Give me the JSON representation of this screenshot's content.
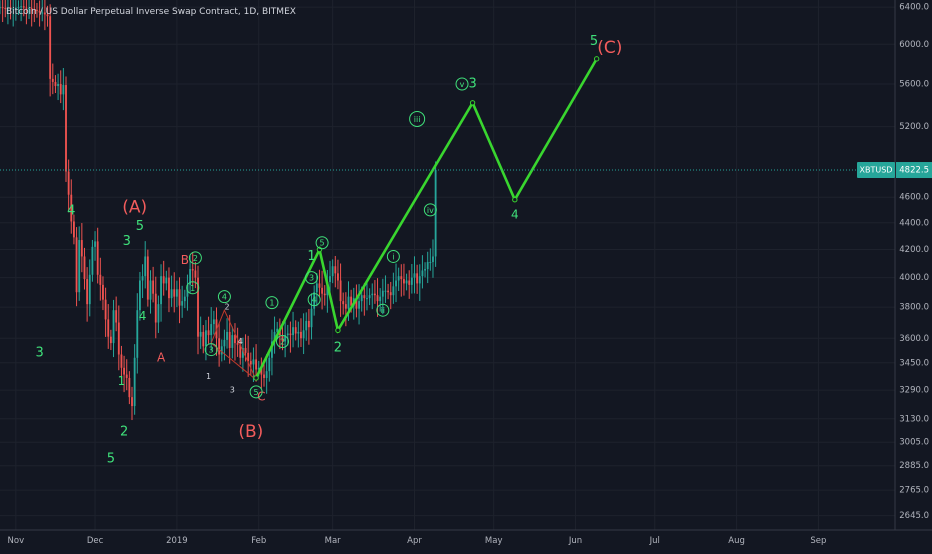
{
  "chart_data": {
    "type": "candlestick",
    "title": "Bitcoin / US Dollar Perpetual Inverse Swap Contract, 1D, BITMEX",
    "symbol_badge": "XBTUSD",
    "price_badge": "4822.5",
    "last_price": 4822.5,
    "y_scale": "log",
    "ylim": [
      2580,
      6480
    ],
    "y_ticks": [
      6400,
      6000,
      5600,
      5200,
      4822.5,
      4600,
      4400,
      4200,
      4000,
      3800,
      3600,
      3450,
      3290,
      3130,
      3005,
      2885,
      2765,
      2645
    ],
    "y_tick_labels": [
      "6400.0",
      "6000.0",
      "5600.0",
      "5200.0",
      "4822.5",
      "4600.0",
      "4400.0",
      "4200.0",
      "4000.0",
      "3800.0",
      "3600.0",
      "3450.0",
      "3290.0",
      "3130.0",
      "3005.0",
      "2885.0",
      "2765.0",
      "2645.0"
    ],
    "xlim": [
      "2018-10-26",
      "2019-09-30"
    ],
    "x_ticks": [
      {
        "date": "2018-11-01",
        "label": "Nov"
      },
      {
        "date": "2018-12-01",
        "label": "Dec"
      },
      {
        "date": "2019-01-01",
        "label": "2019"
      },
      {
        "date": "2019-02-01",
        "label": "Feb"
      },
      {
        "date": "2019-03-01",
        "label": "Mar"
      },
      {
        "date": "2019-04-01",
        "label": "Apr"
      },
      {
        "date": "2019-05-01",
        "label": "May"
      },
      {
        "date": "2019-06-01",
        "label": "Jun"
      },
      {
        "date": "2019-07-01",
        "label": "Jul"
      },
      {
        "date": "2019-08-01",
        "label": "Aug"
      },
      {
        "date": "2019-09-01",
        "label": "Sep"
      }
    ],
    "candles_start": "2018-10-26",
    "candles_close": [
      6400,
      6390,
      6385,
      6395,
      6380,
      6385,
      6390,
      6400,
      6410,
      6395,
      6385,
      6390,
      6380,
      6370,
      6360,
      6340,
      6340,
      6320,
      6300,
      5650,
      5620,
      5580,
      5600,
      5500,
      5590,
      4810,
      4620,
      4410,
      4290,
      3900,
      4270,
      4150,
      3990,
      3820,
      4020,
      4220,
      4260,
      4020,
      3950,
      3850,
      3720,
      3610,
      3570,
      3780,
      3700,
      3500,
      3420,
      3380,
      3360,
      3250,
      3200,
      3480,
      3780,
      3980,
      4010,
      4150,
      3850,
      3980,
      3890,
      3700,
      3820,
      4010,
      3960,
      4000,
      3860,
      3920,
      3870,
      3920,
      3810,
      3840,
      3870,
      3950,
      4060,
      4050,
      4000,
      3610,
      3640,
      3550,
      3650,
      3620,
      3690,
      3720,
      3600,
      3500,
      3550,
      3590,
      3640,
      3540,
      3620,
      3570,
      3560,
      3480,
      3540,
      3510,
      3460,
      3440,
      3470,
      3410,
      3420,
      3380,
      3360,
      3400,
      3480,
      3580,
      3640,
      3660,
      3620,
      3580,
      3620,
      3630,
      3620,
      3670,
      3630,
      3640,
      3600,
      3650,
      3710,
      3670,
      3790,
      3900,
      3960,
      3930,
      3890,
      3880,
      3970,
      4010,
      4080,
      4030,
      3980,
      3840,
      3820,
      3790,
      3870,
      3810,
      3860,
      3790,
      3840,
      3880,
      3860,
      3860,
      3880,
      3890,
      3880,
      3840,
      3870,
      3910,
      3910,
      3900,
      3880,
      3940,
      3980,
      4010,
      3990,
      3960,
      3980,
      3950,
      4000,
      4030,
      3960,
      4010,
      4050,
      4060,
      4110,
      4110,
      4150,
      4822.5
    ],
    "wave_path": [
      {
        "date": "2019-01-31",
        "price": 3360
      },
      {
        "date": "2019-02-24",
        "price": 4200
      },
      {
        "date": "2019-03-03",
        "price": 3650
      },
      {
        "date": "2019-04-23",
        "price": 5420
      },
      {
        "date": "2019-05-09",
        "price": 4580
      },
      {
        "date": "2019-06-09",
        "price": 5850
      }
    ],
    "annotations": [
      {
        "text": "(A)",
        "date": "2018-12-16",
        "price": 4520,
        "color": "#f25c5c",
        "size": 17
      },
      {
        "text": "(B)",
        "date": "2019-01-29",
        "price": 3060,
        "color": "#f25c5c",
        "size": 17
      },
      {
        "text": "(C)",
        "date": "2019-06-14",
        "price": 5960,
        "color": "#f25c5c",
        "size": 17
      },
      {
        "text": "5",
        "date": "2019-06-08",
        "price": 6030,
        "color": "#3fe07a",
        "size": 13
      },
      {
        "text": "3",
        "date": "2019-04-23",
        "price": 5600,
        "color": "#3fe07a",
        "size": 13
      },
      {
        "text": "4",
        "date": "2019-05-09",
        "price": 4460,
        "color": "#3fe07a",
        "size": 12
      },
      {
        "text": "4",
        "date": "2018-11-22",
        "price": 4490,
        "color": "#3fe07a",
        "size": 13
      },
      {
        "text": "3",
        "date": "2018-12-13",
        "price": 4260,
        "color": "#3fe07a",
        "size": 13
      },
      {
        "text": "5",
        "date": "2018-12-18",
        "price": 4370,
        "color": "#3fe07a",
        "size": 13
      },
      {
        "text": "3",
        "date": "2018-11-10",
        "price": 3510,
        "color": "#3fe07a",
        "size": 13
      },
      {
        "text": "4",
        "date": "2018-12-19",
        "price": 3740,
        "color": "#3fe07a",
        "size": 12
      },
      {
        "text": "1",
        "date": "2018-12-11",
        "price": 3340,
        "color": "#3fe07a",
        "size": 12
      },
      {
        "text": "2",
        "date": "2018-12-12",
        "price": 3060,
        "color": "#3fe07a",
        "size": 13
      },
      {
        "text": "5",
        "date": "2018-12-07",
        "price": 2920,
        "color": "#3fe07a",
        "size": 13
      },
      {
        "text": "1",
        "date": "2019-02-21",
        "price": 4150,
        "color": "#3fe07a",
        "size": 13
      },
      {
        "text": "2",
        "date": "2019-03-03",
        "price": 3540,
        "color": "#3fe07a",
        "size": 13
      },
      {
        "text": "B",
        "date": "2019-01-04",
        "price": 4120,
        "color": "#f25c5c",
        "size": 12
      },
      {
        "text": "A",
        "date": "2018-12-26",
        "price": 3480,
        "color": "#f25c5c",
        "size": 12
      },
      {
        "text": "C",
        "date": "2019-02-02",
        "price": 3250,
        "color": "#f25c5c",
        "size": 12
      },
      {
        "text": "1",
        "date": "2019-01-13",
        "price": 3370,
        "color": "#d1d4dc",
        "size": 8
      },
      {
        "text": "2",
        "date": "2019-01-20",
        "price": 3800,
        "color": "#d1d4dc",
        "size": 8
      },
      {
        "text": "3",
        "date": "2019-01-22",
        "price": 3290,
        "color": "#d1d4dc",
        "size": 8
      },
      {
        "text": "4",
        "date": "2019-01-25",
        "price": 3580,
        "color": "#d1d4dc",
        "size": 8
      }
    ],
    "circled_labels": [
      {
        "text": "v",
        "date": "2019-04-19",
        "price": 5600
      },
      {
        "text": "iii",
        "date": "2019-04-02",
        "price": 5270
      },
      {
        "text": "iv",
        "date": "2019-04-07",
        "price": 4500
      },
      {
        "text": "i",
        "date": "2019-03-24",
        "price": 4150
      },
      {
        "text": "ii",
        "date": "2019-03-20",
        "price": 3780
      },
      {
        "text": "5",
        "date": "2019-02-25",
        "price": 4250
      },
      {
        "text": "4",
        "date": "2019-02-22",
        "price": 3850
      },
      {
        "text": "3",
        "date": "2019-02-21",
        "price": 4000
      },
      {
        "text": "2",
        "date": "2019-02-10",
        "price": 3580
      },
      {
        "text": "1",
        "date": "2019-02-06",
        "price": 3830
      },
      {
        "text": "5",
        "date": "2019-01-31",
        "price": 3280
      },
      {
        "text": "4",
        "date": "2019-01-19",
        "price": 3870
      },
      {
        "text": "3",
        "date": "2019-01-14",
        "price": 3530
      },
      {
        "text": "2",
        "date": "2019-01-08",
        "price": 4140
      },
      {
        "text": "1",
        "date": "2019-01-07",
        "price": 3930
      }
    ]
  }
}
